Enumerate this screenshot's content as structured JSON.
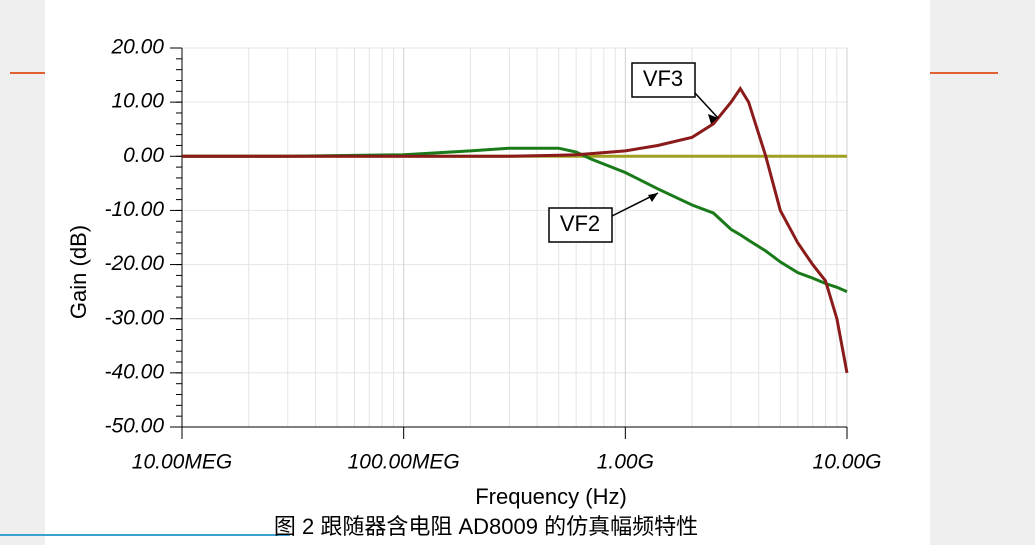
{
  "chart_data": {
    "type": "line",
    "x_scale": "log",
    "grid": true,
    "ylabel": "Gain (dB)",
    "xlabel": "Frequency (Hz)",
    "caption": "图 2  跟随器含电阻 AD8009 的仿真幅频特性",
    "x": [
      10000000,
      30000000,
      100000000,
      200000000,
      300000000,
      500000000,
      600000000,
      700000000,
      1000000000,
      1400000000,
      2000000000,
      2500000000,
      3000000000,
      3300000000,
      3600000000,
      4300000000,
      5000000000,
      6000000000,
      7000000000,
      8000000000,
      9000000000,
      10000000000
    ],
    "series": [
      {
        "name": "VF2",
        "color": "#1a7a1a",
        "values": [
          0,
          0,
          0.3,
          1,
          1.5,
          1.5,
          0.8,
          -0.5,
          -3,
          -6,
          -9,
          -10.5,
          -13.5,
          -14.5,
          -15.5,
          -17.5,
          -19.5,
          -21.5,
          -22.5,
          -23.5,
          -24.2,
          -25
        ]
      },
      {
        "name": "VF3",
        "color": "#8b1a1a",
        "values": [
          0,
          0,
          0,
          0,
          0,
          0.2,
          0.3,
          0.5,
          1,
          2,
          3.5,
          6,
          10,
          12.5,
          10,
          0,
          -10,
          -16,
          -20,
          -23,
          -30,
          -40
        ]
      },
      {
        "color": "#a0a020",
        "values": [
          0,
          0,
          0,
          0,
          0,
          0,
          0,
          0,
          0,
          0,
          0,
          0,
          0,
          0,
          0,
          0,
          0,
          0,
          0,
          0,
          0,
          0
        ]
      }
    ],
    "xlim": [
      10000000,
      10000000000
    ],
    "xticks": [
      {
        "value": 10000000,
        "label": "10.00MEG"
      },
      {
        "value": 100000000,
        "label": "100.00MEG"
      },
      {
        "value": 1000000000,
        "label": "1.00G"
      },
      {
        "value": 10000000000,
        "label": "10.00G"
      }
    ],
    "ylim": [
      -50,
      20
    ],
    "yticks": [
      {
        "value": 20,
        "label": "20.00"
      },
      {
        "value": 10,
        "label": "10.00"
      },
      {
        "value": 0,
        "label": "0.00"
      },
      {
        "value": -10,
        "label": "-10.00"
      },
      {
        "value": -20,
        "label": "-20.00"
      },
      {
        "value": -30,
        "label": "-30.00"
      },
      {
        "value": -40,
        "label": "-40.00"
      },
      {
        "value": -50,
        "label": "-50.00"
      }
    ]
  }
}
